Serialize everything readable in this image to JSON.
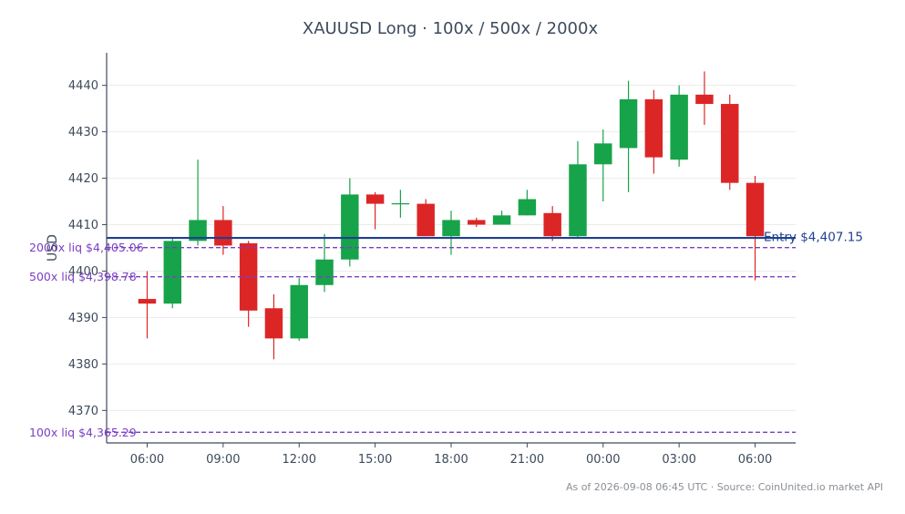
{
  "chart_data": {
    "type": "candlestick",
    "title": "XAUUSD Long · 100x / 500x / 2000x",
    "ylabel": "USD",
    "xlabel": "",
    "ylim": [
      4363,
      4447
    ],
    "yticks": [
      4370,
      4380,
      4390,
      4400,
      4410,
      4420,
      4430,
      4440
    ],
    "x_tick_labels": [
      "06:00",
      "09:00",
      "12:00",
      "15:00",
      "18:00",
      "21:00",
      "00:00",
      "03:00",
      "06:00"
    ],
    "x_tick_hours": [
      6,
      9,
      12,
      15,
      18,
      21,
      24,
      27,
      30
    ],
    "xlim_hours": [
      4.4,
      31.6
    ],
    "grid": "horizontal",
    "colors": {
      "up": "#17a34a",
      "down": "#dc2626",
      "entry": "#1f3f8f",
      "liq": "#7b3fc4",
      "axis": "#3d4b5c",
      "grid": "#ebebeb"
    },
    "candles": [
      {
        "t": 6,
        "o": 4394.0,
        "h": 4400.0,
        "l": 4385.5,
        "c": 4393.0
      },
      {
        "t": 7,
        "o": 4393.0,
        "h": 4407.0,
        "l": 4392.0,
        "c": 4406.5
      },
      {
        "t": 8,
        "o": 4406.5,
        "h": 4424.0,
        "l": 4405.5,
        "c": 4411.0
      },
      {
        "t": 9,
        "o": 4411.0,
        "h": 4414.0,
        "l": 4403.5,
        "c": 4405.5
      },
      {
        "t": 10,
        "o": 4406.0,
        "h": 4406.5,
        "l": 4388.0,
        "c": 4391.5
      },
      {
        "t": 11,
        "o": 4392.0,
        "h": 4395.0,
        "l": 4381.0,
        "c": 4385.5
      },
      {
        "t": 12,
        "o": 4385.5,
        "h": 4398.5,
        "l": 4385.0,
        "c": 4397.0
      },
      {
        "t": 13,
        "o": 4397.0,
        "h": 4408.0,
        "l": 4395.5,
        "c": 4402.5
      },
      {
        "t": 14,
        "o": 4402.5,
        "h": 4420.0,
        "l": 4401.0,
        "c": 4416.5
      },
      {
        "t": 15,
        "o": 4416.5,
        "h": 4417.0,
        "l": 4409.0,
        "c": 4414.5
      },
      {
        "t": 16,
        "o": 4414.5,
        "h": 4417.5,
        "l": 4411.5,
        "c": 4414.5
      },
      {
        "t": 17,
        "o": 4414.5,
        "h": 4415.5,
        "l": 4407.5,
        "c": 4407.5
      },
      {
        "t": 18,
        "o": 4407.5,
        "h": 4413.0,
        "l": 4403.5,
        "c": 4411.0
      },
      {
        "t": 19,
        "o": 4411.0,
        "h": 4411.5,
        "l": 4409.5,
        "c": 4410.0
      },
      {
        "t": 20,
        "o": 4410.0,
        "h": 4413.0,
        "l": 4410.0,
        "c": 4412.0
      },
      {
        "t": 21,
        "o": 4412.0,
        "h": 4417.5,
        "l": 4412.0,
        "c": 4415.5
      },
      {
        "t": 22,
        "o": 4412.5,
        "h": 4414.0,
        "l": 4406.5,
        "c": 4407.5
      },
      {
        "t": 23,
        "o": 4407.5,
        "h": 4428.0,
        "l": 4407.0,
        "c": 4423.0
      },
      {
        "t": 24,
        "o": 4423.0,
        "h": 4430.5,
        "l": 4415.0,
        "c": 4427.5
      },
      {
        "t": 25,
        "o": 4426.5,
        "h": 4441.0,
        "l": 4417.0,
        "c": 4437.0
      },
      {
        "t": 26,
        "o": 4437.0,
        "h": 4439.0,
        "l": 4421.0,
        "c": 4424.5
      },
      {
        "t": 27,
        "o": 4424.0,
        "h": 4440.0,
        "l": 4422.5,
        "c": 4438.0
      },
      {
        "t": 28,
        "o": 4438.0,
        "h": 4443.0,
        "l": 4431.5,
        "c": 4436.0
      },
      {
        "t": 29,
        "o": 4436.0,
        "h": 4438.0,
        "l": 4417.5,
        "c": 4419.0
      },
      {
        "t": 30,
        "o": 4419.0,
        "h": 4420.5,
        "l": 4398.0,
        "c": 4407.5
      }
    ],
    "entry": {
      "label": "Entry $4,407.15",
      "value": 4407.15
    },
    "liquidation_levels": [
      {
        "label": "2000x liq $4,405.06",
        "value": 4405.06
      },
      {
        "label": "500x liq $4,398.78",
        "value": 4398.78
      },
      {
        "label": "100x liq $4,365.29",
        "value": 4365.29
      }
    ]
  },
  "footer": "As of 2026-09-08 06:45 UTC · Source: CoinUnited.io market API"
}
